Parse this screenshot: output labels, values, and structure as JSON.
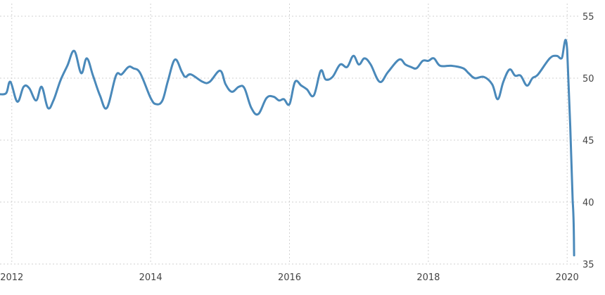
{
  "chart_data": {
    "type": "line",
    "title": "",
    "xlabel": "",
    "ylabel": "",
    "xlim": [
      2011.83,
      2020.17
    ],
    "ylim": [
      35,
      55
    ],
    "yaxis_position": "right",
    "grid": true,
    "legend": "none",
    "x_ticks": [
      {
        "value": 2012,
        "label": "2012"
      },
      {
        "value": 2014,
        "label": "2014"
      },
      {
        "value": 2016,
        "label": "2016"
      },
      {
        "value": 2018,
        "label": "2018"
      },
      {
        "value": 2020,
        "label": "2020"
      }
    ],
    "y_ticks": [
      {
        "value": 35,
        "label": "35"
      },
      {
        "value": 40,
        "label": "40"
      },
      {
        "value": 45,
        "label": "45"
      },
      {
        "value": 50,
        "label": "50"
      },
      {
        "value": 55,
        "label": "55"
      }
    ],
    "series": [
      {
        "color": "#4a89ba",
        "x": [
          2011.83,
          2011.92,
          2011.98,
          2012.08,
          2012.17,
          2012.25,
          2012.35,
          2012.43,
          2012.52,
          2012.6,
          2012.7,
          2012.8,
          2012.9,
          2013.0,
          2013.08,
          2013.17,
          2013.27,
          2013.37,
          2013.5,
          2013.58,
          2013.68,
          2013.75,
          2013.85,
          2014.0,
          2014.08,
          2014.17,
          2014.25,
          2014.35,
          2014.45,
          2014.5,
          2014.58,
          2014.75,
          2014.85,
          2015.0,
          2015.08,
          2015.17,
          2015.27,
          2015.35,
          2015.45,
          2015.55,
          2015.67,
          2015.77,
          2015.85,
          2015.92,
          2016.0,
          2016.08,
          2016.17,
          2016.25,
          2016.35,
          2016.45,
          2016.52,
          2016.62,
          2016.73,
          2016.83,
          2016.92,
          2017.0,
          2017.08,
          2017.17,
          2017.3,
          2017.42,
          2017.58,
          2017.67,
          2017.75,
          2017.83,
          2017.92,
          2018.0,
          2018.08,
          2018.17,
          2018.33,
          2018.5,
          2018.58,
          2018.67,
          2018.8,
          2018.92,
          2019.0,
          2019.08,
          2019.17,
          2019.25,
          2019.33,
          2019.42,
          2019.5,
          2019.58,
          2019.75,
          2019.85,
          2019.92,
          2020.0,
          2020.08,
          2020.1
        ],
        "y": [
          48.7,
          48.8,
          49.7,
          48.1,
          49.3,
          49.2,
          48.2,
          49.3,
          47.6,
          48.2,
          49.8,
          51.0,
          52.2,
          50.4,
          51.6,
          50.2,
          48.6,
          47.6,
          50.2,
          50.3,
          50.9,
          50.8,
          50.4,
          48.4,
          47.9,
          48.2,
          49.8,
          51.5,
          50.5,
          50.1,
          50.3,
          49.7,
          49.7,
          50.6,
          49.5,
          48.9,
          49.3,
          49.2,
          47.6,
          47.1,
          48.4,
          48.5,
          48.2,
          48.3,
          47.9,
          49.7,
          49.4,
          49.1,
          48.6,
          50.6,
          49.9,
          50.1,
          51.1,
          50.9,
          51.8,
          51.1,
          51.6,
          51.1,
          49.7,
          50.5,
          51.5,
          51.1,
          50.9,
          50.8,
          51.4,
          51.4,
          51.6,
          51.0,
          51.0,
          50.8,
          50.4,
          50.0,
          50.1,
          49.5,
          48.3,
          49.7,
          50.7,
          50.2,
          50.2,
          49.4,
          50.0,
          50.3,
          51.6,
          51.8,
          51.6,
          52.3,
          40.0,
          35.7
        ]
      }
    ]
  }
}
